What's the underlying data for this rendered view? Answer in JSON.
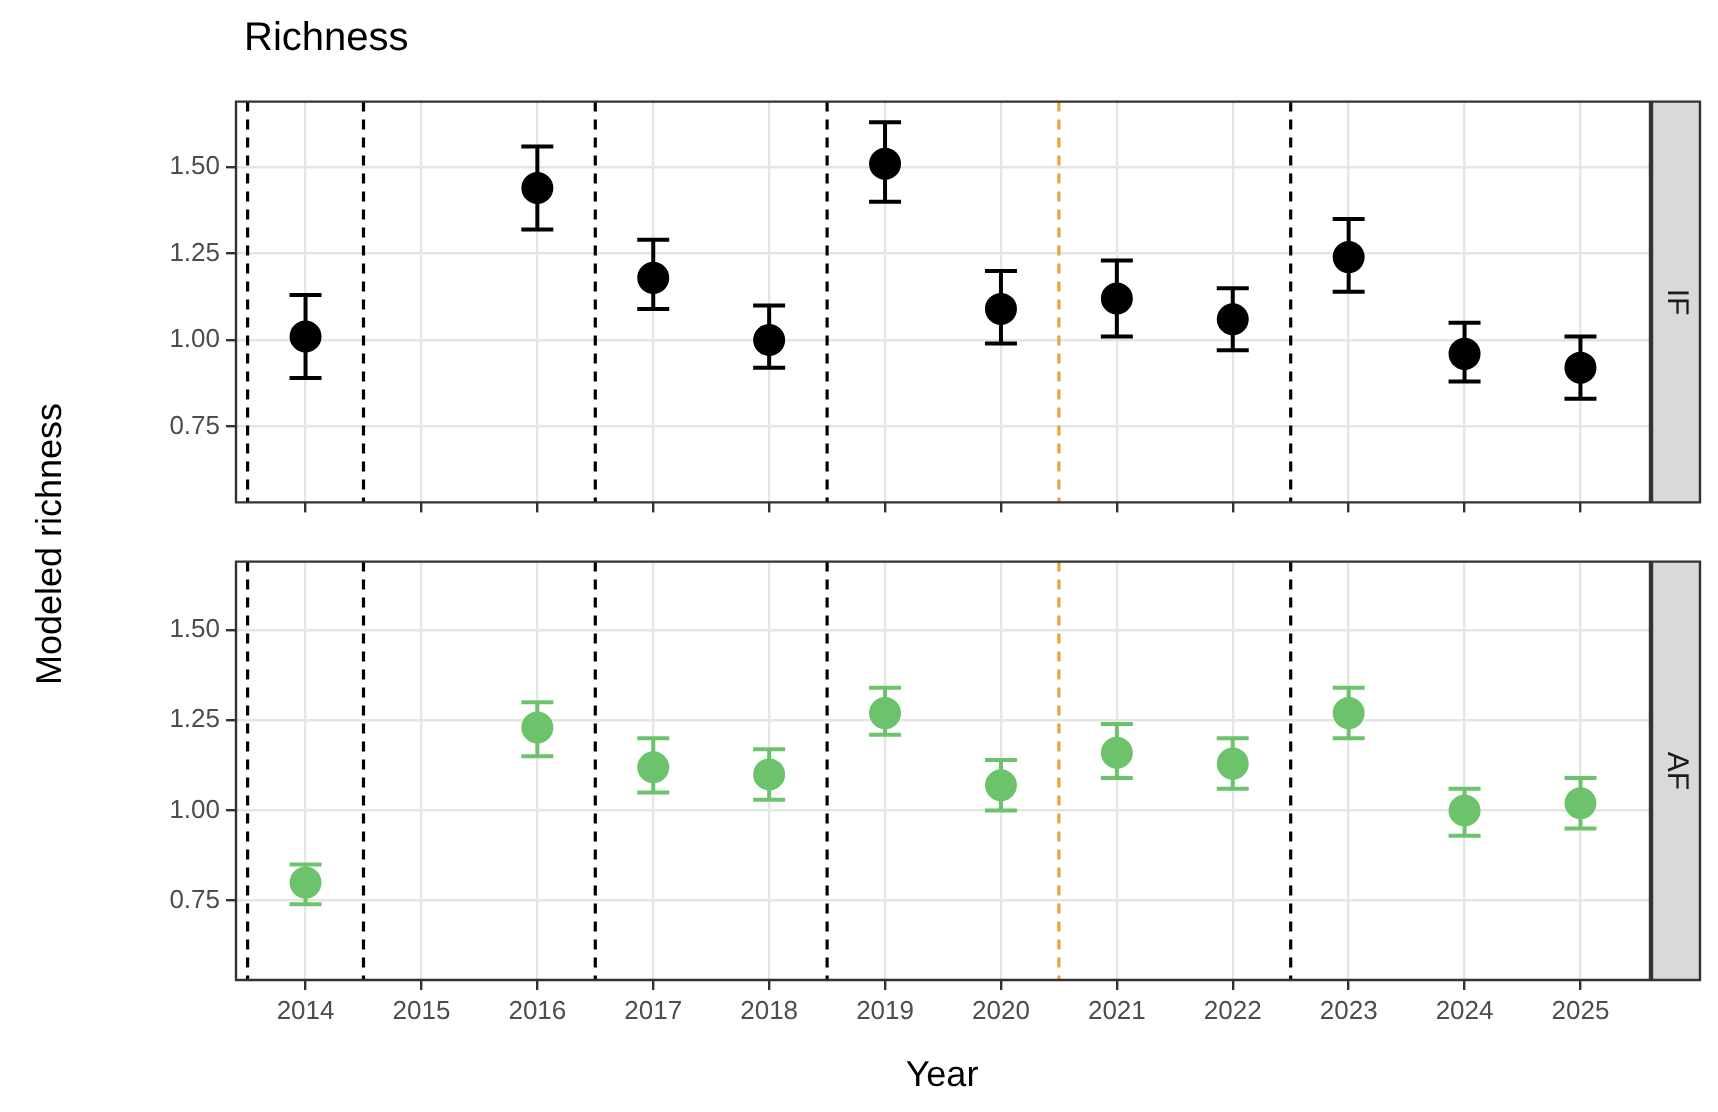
{
  "chart_data": [
    {
      "type": "scatter",
      "title": "Richness",
      "ylabel": "Modeled richness",
      "x": [
        2014,
        2016,
        2017,
        2018,
        2019,
        2020,
        2021,
        2022,
        2023,
        2024,
        2025
      ],
      "series": [
        {
          "name": "IF",
          "color": "#000000",
          "values": [
            1.01,
            1.44,
            1.18,
            1.0,
            1.51,
            1.09,
            1.12,
            1.06,
            1.24,
            0.96,
            0.92
          ],
          "errors": [
            [
              0.89,
              1.13
            ],
            [
              1.32,
              1.56
            ],
            [
              1.09,
              1.29
            ],
            [
              0.92,
              1.1
            ],
            [
              1.4,
              1.63
            ],
            [
              0.99,
              1.2
            ],
            [
              1.01,
              1.23
            ],
            [
              0.97,
              1.15
            ],
            [
              1.14,
              1.35
            ],
            [
              0.88,
              1.05
            ],
            [
              0.83,
              1.01
            ]
          ]
        }
      ],
      "xlim": [
        2013.4,
        2025.6
      ],
      "xticks": [
        2014,
        2015,
        2016,
        2017,
        2018,
        2019,
        2020,
        2021,
        2022,
        2023,
        2024,
        2025
      ],
      "ylim": [
        0.53,
        1.69
      ],
      "yticks": [
        {
          "value": 0.75,
          "label": "0.75"
        },
        {
          "value": 1,
          "label": "1.00"
        },
        {
          "value": 1.25,
          "label": "1.25"
        },
        {
          "value": 1.5,
          "label": "1.50"
        }
      ],
      "grid": true,
      "legend": false,
      "marker": "circle",
      "tick_labels": "y",
      "ref_lines": [
        {
          "axis": "x",
          "value": 2013.5,
          "color": "#000000",
          "line_style": "dashed"
        },
        {
          "axis": "x",
          "value": 2014.5,
          "color": "#000000",
          "line_style": "dashed"
        },
        {
          "axis": "x",
          "value": 2016.5,
          "color": "#000000",
          "line_style": "dashed"
        },
        {
          "axis": "x",
          "value": 2018.5,
          "color": "#000000",
          "line_style": "dashed"
        },
        {
          "axis": "x",
          "value": 2020.5,
          "color": "#e8a33d",
          "line_style": "dashed"
        },
        {
          "axis": "x",
          "value": 2022.5,
          "color": "#000000",
          "line_style": "dashed"
        }
      ]
    },
    {
      "type": "scatter",
      "xlabel": "Year",
      "x": [
        2014,
        2016,
        2017,
        2018,
        2019,
        2020,
        2021,
        2022,
        2023,
        2024,
        2025
      ],
      "series": [
        {
          "name": "AF",
          "color": "#6cc36c",
          "values": [
            0.8,
            1.23,
            1.12,
            1.1,
            1.27,
            1.07,
            1.16,
            1.13,
            1.27,
            1.0,
            1.02
          ],
          "errors": [
            [
              0.74,
              0.85
            ],
            [
              1.15,
              1.3
            ],
            [
              1.05,
              1.2
            ],
            [
              1.03,
              1.17
            ],
            [
              1.21,
              1.34
            ],
            [
              1.0,
              1.14
            ],
            [
              1.09,
              1.24
            ],
            [
              1.06,
              1.2
            ],
            [
              1.2,
              1.34
            ],
            [
              0.93,
              1.06
            ],
            [
              0.95,
              1.09
            ]
          ]
        }
      ],
      "xlim": [
        2013.4,
        2025.6
      ],
      "xticks": [
        2014,
        2015,
        2016,
        2017,
        2018,
        2019,
        2020,
        2021,
        2022,
        2023,
        2024,
        2025
      ],
      "ylim": [
        0.53,
        1.69
      ],
      "yticks": [
        {
          "value": 0.75,
          "label": "0.75"
        },
        {
          "value": 1,
          "label": "1.00"
        },
        {
          "value": 1.25,
          "label": "1.25"
        },
        {
          "value": 1.5,
          "label": "1.50"
        }
      ],
      "grid": true,
      "legend": false,
      "marker": "circle",
      "ref_lines": [
        {
          "axis": "x",
          "value": 2013.5,
          "color": "#000000",
          "line_style": "dashed"
        },
        {
          "axis": "x",
          "value": 2014.5,
          "color": "#000000",
          "line_style": "dashed"
        },
        {
          "axis": "x",
          "value": 2016.5,
          "color": "#000000",
          "line_style": "dashed"
        },
        {
          "axis": "x",
          "value": 2018.5,
          "color": "#000000",
          "line_style": "dashed"
        },
        {
          "axis": "x",
          "value": 2020.5,
          "color": "#e8a33d",
          "line_style": "dashed"
        },
        {
          "axis": "x",
          "value": 2022.5,
          "color": "#000000",
          "line_style": "dashed"
        }
      ]
    }
  ]
}
